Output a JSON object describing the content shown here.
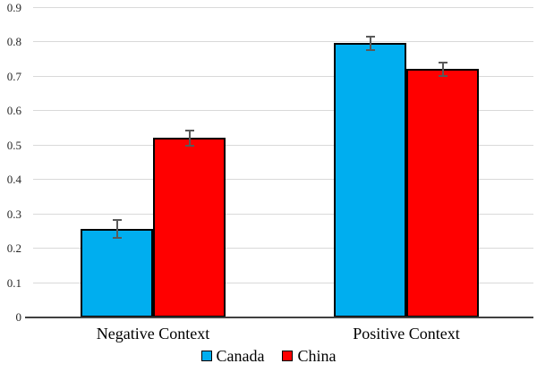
{
  "chart_data": {
    "type": "bar",
    "title": "",
    "categories": [
      "Negative Context",
      "Positive Context"
    ],
    "series": [
      {
        "name": "Canada",
        "color": "#00AEEF",
        "values": [
          0.255,
          0.795
        ],
        "errors": [
          0.025,
          0.02
        ]
      },
      {
        "name": "China",
        "color": "#FF0000",
        "values": [
          0.52,
          0.72
        ],
        "errors": [
          0.022,
          0.02
        ]
      }
    ],
    "ylim": [
      0,
      0.9
    ],
    "ytick_step": 0.1,
    "ytick_labels": [
      "0",
      "0.1",
      "0.2",
      "0.3",
      "0.4",
      "0.5",
      "0.6",
      "0.7",
      "0.8",
      "0.9"
    ],
    "grid": true,
    "legend_position": "bottom",
    "error_bar_color": "#595959",
    "bar_border_color": "#000000",
    "axis_line_color": "#404040",
    "gridline_color": "#d9d9d9"
  }
}
